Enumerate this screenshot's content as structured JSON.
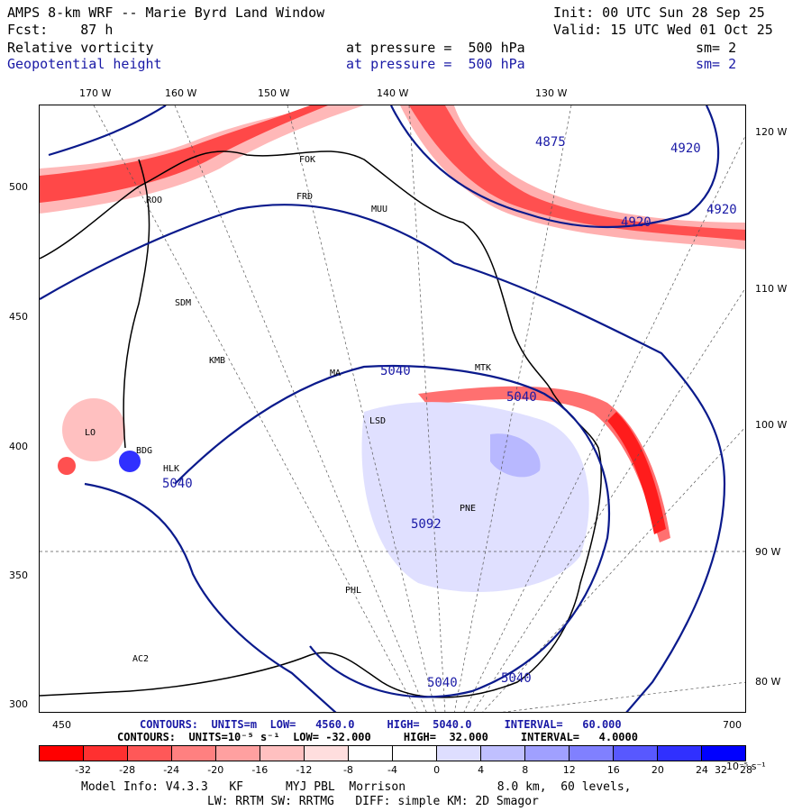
{
  "header": {
    "title": "AMPS 8-km WRF -- Marie Byrd Land Window",
    "init": "Init: 00 UTC Sun 28 Sep 25",
    "fcst": "Fcst:    87 h",
    "valid": "Valid: 15 UTC Wed 01 Oct 25",
    "field1": "Relative vorticity",
    "field1_level": "at pressure =  500 hPa",
    "field1_sm": "sm= 2",
    "field2": "Geopotential height",
    "field2_level": "at pressure =  500 hPa",
    "field2_sm": "sm= 2"
  },
  "axes": {
    "top_lon": [
      "170 W",
      "160 W",
      "150 W",
      "140 W",
      "130 W"
    ],
    "right_lon": [
      "120 W",
      "110 W",
      "100 W",
      "90 W",
      "80 W"
    ],
    "left_y": [
      "500",
      "450",
      "400",
      "350",
      "300"
    ],
    "bottom_x": [
      "450",
      "700"
    ]
  },
  "stations": [
    "ROO",
    "FRD",
    "MUU",
    "FOK",
    "SDM",
    "KMB",
    "MA",
    "MTK",
    "LSD",
    "HLK",
    "PNE",
    "PHL",
    "AC2",
    "LO",
    "BDG"
  ],
  "height_labels": [
    "4875",
    "4920",
    "4920",
    "4920",
    "5040",
    "5040",
    "5040",
    "5092",
    "5040",
    "5040"
  ],
  "contour_info": {
    "line1": "CONTOURS:  UNITS=m  LOW=   4560.0     HIGH=  5040.0     INTERVAL=   60.000",
    "line2": "CONTOURS:  UNITS=10⁻⁵ s⁻¹  LOW= -32.000     HIGH=  32.000     INTERVAL=   4.0000"
  },
  "colorbar": {
    "colors": [
      "#ff0000",
      "#ff3030",
      "#ff5858",
      "#ff8080",
      "#ffa0a0",
      "#ffc0c0",
      "#ffdede",
      "#ffffff",
      "#ffffff",
      "#dedeff",
      "#c0c0ff",
      "#a0a0ff",
      "#8080ff",
      "#5858ff",
      "#3030ff",
      "#0000ff"
    ],
    "ticks": [
      "-32",
      "-28",
      "-24",
      "-20",
      "-16",
      "-12",
      "-8",
      "-4",
      "0",
      "4",
      "8",
      "12",
      "16",
      "20",
      "24",
      "28",
      "32"
    ],
    "unit": "10⁻⁵ s⁻¹"
  },
  "footer": {
    "line1": "Model Info: V4.3.3   KF      MYJ PBL  Morrison             8.0 km,  60 levels,",
    "line2": "LW: RRTM SW: RRTMG   DIFF: simple KM: 2D Smagor"
  }
}
